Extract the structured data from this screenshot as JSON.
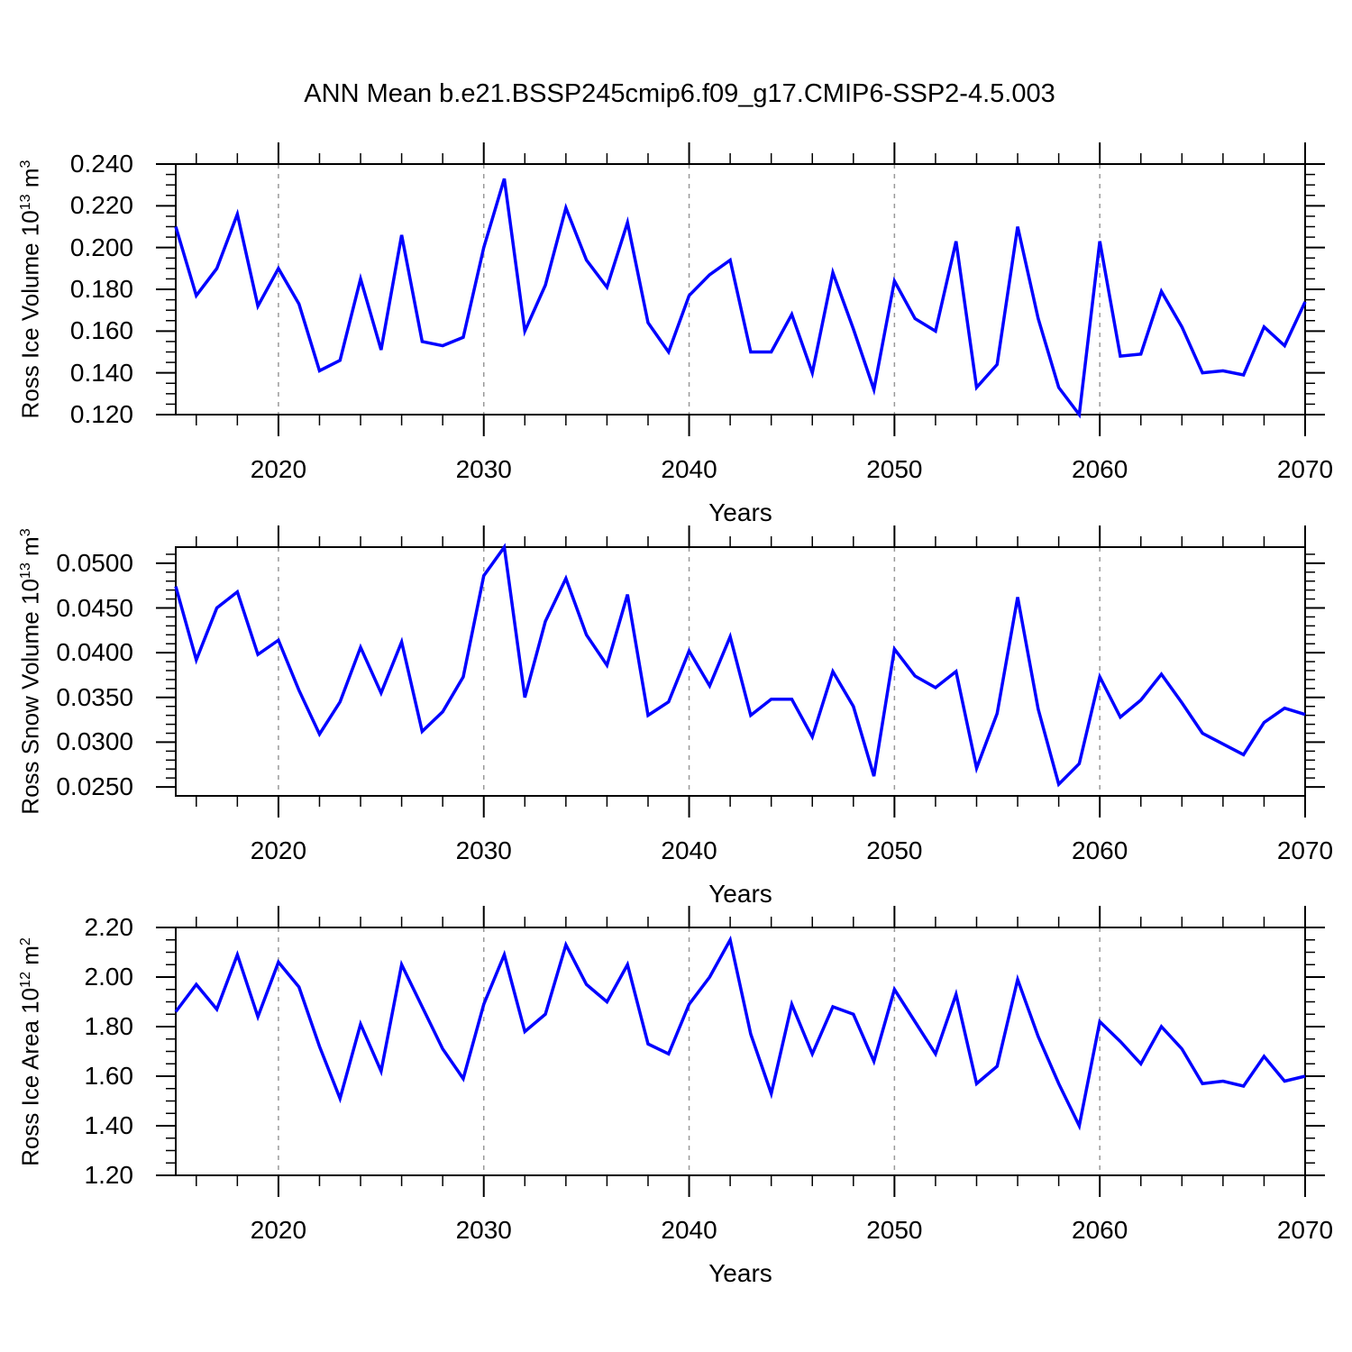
{
  "title": "ANN Mean b.e21.BSSP245cmip6.f09_g17.CMIP6-SSP2-4.5.003",
  "colors": {
    "line": "#0000ff",
    "grid": "#999999",
    "frame": "#000000",
    "text": "#000000",
    "background": "#ffffff"
  },
  "x_axis": {
    "label": "Years",
    "start": 2015,
    "end": 2070,
    "major_ticks": [
      2020,
      2030,
      2040,
      2050,
      2060,
      2070
    ],
    "major_tick_labels": [
      "2020",
      "2030",
      "2040",
      "2050",
      "2060",
      "2070"
    ],
    "minor_tick_every_years": 2,
    "gridline_years": [
      2020,
      2030,
      2040,
      2050,
      2060
    ],
    "gridline_style": "dashed"
  },
  "chart_data": [
    {
      "type": "line",
      "ylabel": "Ross Ice Volume 10^13 m^3",
      "ylabel_parts": [
        {
          "t": "Ross Ice Volume 10"
        },
        {
          "t": "13",
          "sup": true
        },
        {
          "t": " m"
        },
        {
          "t": "3",
          "sup": true
        }
      ],
      "xlabel": "Years",
      "ylim": [
        0.12,
        0.24
      ],
      "ytick_values": [
        0.24,
        0.22,
        0.2,
        0.18,
        0.16,
        0.14,
        0.12
      ],
      "ytick_labels": [
        "0.240",
        "0.220",
        "0.200",
        "0.180",
        "0.160",
        "0.140",
        "0.120"
      ],
      "ytick_minor_step": 0.005,
      "x_start": 2015,
      "x_step": 1,
      "values": [
        0.21,
        0.177,
        0.19,
        0.216,
        0.172,
        0.19,
        0.173,
        0.141,
        0.146,
        0.185,
        0.151,
        0.206,
        0.155,
        0.153,
        0.157,
        0.2,
        0.233,
        0.16,
        0.182,
        0.219,
        0.194,
        0.181,
        0.212,
        0.164,
        0.15,
        0.177,
        0.187,
        0.194,
        0.15,
        0.15,
        0.168,
        0.14,
        0.188,
        0.161,
        0.132,
        0.184,
        0.166,
        0.16,
        0.203,
        0.133,
        0.144,
        0.21,
        0.166,
        0.133,
        0.12,
        0.203,
        0.148,
        0.149,
        0.179,
        0.162,
        0.14,
        0.141,
        0.139,
        0.162,
        0.153,
        0.174
      ]
    },
    {
      "type": "line",
      "ylabel": "Ross Snow Volume 10^13 m^3",
      "ylabel_parts": [
        {
          "t": "Ross Snow Volume 10"
        },
        {
          "t": "13",
          "sup": true
        },
        {
          "t": " m"
        },
        {
          "t": "3",
          "sup": true
        }
      ],
      "xlabel": "Years",
      "ylim": [
        0.024,
        0.0518
      ],
      "ytick_values": [
        0.05,
        0.045,
        0.04,
        0.035,
        0.03,
        0.025
      ],
      "ytick_labels": [
        "0.0500",
        "0.0450",
        "0.0400",
        "0.0350",
        "0.0300",
        "0.0250"
      ],
      "ytick_minor_step": 0.001,
      "x_start": 2015,
      "x_step": 1,
      "values": [
        0.0474,
        0.0392,
        0.045,
        0.0468,
        0.0398,
        0.0414,
        0.0358,
        0.0309,
        0.0345,
        0.0406,
        0.0355,
        0.0412,
        0.0312,
        0.0334,
        0.0373,
        0.0486,
        0.0518,
        0.035,
        0.0435,
        0.0483,
        0.042,
        0.0386,
        0.0465,
        0.033,
        0.0345,
        0.0402,
        0.0363,
        0.0418,
        0.033,
        0.0348,
        0.0348,
        0.0306,
        0.0379,
        0.034,
        0.0262,
        0.0404,
        0.0374,
        0.0361,
        0.0379,
        0.0271,
        0.0332,
        0.0462,
        0.0337,
        0.0253,
        0.0276,
        0.0373,
        0.0328,
        0.0347,
        0.0376,
        0.0344,
        0.031,
        0.0298,
        0.0286,
        0.0322,
        0.0338,
        0.0331
      ]
    },
    {
      "type": "line",
      "ylabel": "Ross Ice Area 10^12 m^2",
      "ylabel_parts": [
        {
          "t": "Ross Ice Area 10"
        },
        {
          "t": "12",
          "sup": true
        },
        {
          "t": " m"
        },
        {
          "t": "2",
          "sup": true
        }
      ],
      "xlabel": "Years",
      "ylim": [
        1.2,
        2.2
      ],
      "ytick_values": [
        2.2,
        2.0,
        1.8,
        1.6,
        1.4,
        1.2
      ],
      "ytick_labels": [
        "2.20",
        "2.00",
        "1.80",
        "1.60",
        "1.40",
        "1.20"
      ],
      "ytick_minor_step": 0.05,
      "x_start": 2015,
      "x_step": 1,
      "values": [
        1.86,
        1.97,
        1.87,
        2.09,
        1.84,
        2.06,
        1.96,
        1.72,
        1.51,
        1.81,
        1.62,
        2.05,
        1.88,
        1.71,
        1.59,
        1.89,
        2.09,
        1.78,
        1.85,
        2.13,
        1.97,
        1.9,
        2.05,
        1.73,
        1.69,
        1.89,
        2.0,
        2.15,
        1.77,
        1.53,
        1.89,
        1.69,
        1.88,
        1.85,
        1.66,
        1.95,
        1.82,
        1.69,
        1.93,
        1.57,
        1.64,
        1.99,
        1.76,
        1.57,
        1.4,
        1.82,
        1.74,
        1.65,
        1.8,
        1.71,
        1.57,
        1.58,
        1.56,
        1.68,
        1.58,
        1.6
      ]
    }
  ]
}
